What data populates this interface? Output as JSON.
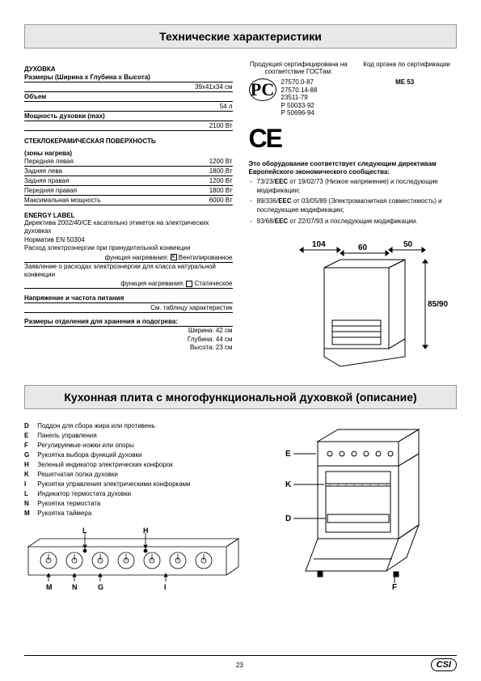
{
  "title1": "Технические характеристики",
  "title2": "Кухонная плита с многофункциональной духовкой (описание)",
  "oven": {
    "heading": "ДУХОВКА",
    "dims_label": "Размеры (Ширина x Глубина x Высота)",
    "dims_value": "39x41x34 см",
    "volume_label": "Объем",
    "volume_value": "54 л",
    "power_label": "Мощность духовки (max)",
    "power_value": "2100 Вт"
  },
  "hob": {
    "heading": "СТЕКЛОКЕРАМИЧЕСКАЯ ПОВЕРХНОСТЬ",
    "subheading": "(зоны нагрева)",
    "rows": [
      {
        "label": "Передняя левая",
        "value": "1200 Вт"
      },
      {
        "label": "Задняя лева",
        "value": "1800 Вт"
      },
      {
        "label": "Задняя правая",
        "value": "1200 Вт"
      },
      {
        "label": "Передняя правая",
        "value": "1800 Вт"
      },
      {
        "label": "Максимальная мощность",
        "value": "6000 Вт"
      }
    ]
  },
  "energy": {
    "heading": "ENERGY LABEL",
    "line1": "Директива 2002/40/CE касательно этикеток на электрических духовках",
    "line2": "Норматив EN 50304",
    "line3": "Расход электроэнергии при принудительной конвекции",
    "func1_label": "функция нагревания:",
    "func1_value": "Вентилированное",
    "line4": "Заявление о расходах электроэнергии для класса натуральной конвекции",
    "func2_label": "функция нагревания:",
    "func2_value": "Статическое"
  },
  "voltage": {
    "heading": "Напряжение и частота питания",
    "value": "См. таблицу характеристик"
  },
  "storage": {
    "heading": "Размеры отделения для хранения и подогрева:",
    "w": "Ширина: 42 см",
    "d": "Глубина: 44 см",
    "h": "Высота: 23 см"
  },
  "cert": {
    "left_text": "Продукция сертифицирована на соответствие ГОСТам:",
    "right_text": "Код органа по сертификации",
    "code": "ME 53",
    "nums": [
      "27570.0-87",
      "27570.14-88",
      "23511-79",
      "Р 50033-92",
      "Р 50696-94"
    ]
  },
  "directives": {
    "intro": "Это оборудование соответствует следующим директивам Европейского экономического сообщества:",
    "items": [
      "73/23/EEC от 19/02/73 (Низкое напряжение) и последующие модификации;",
      "89/336/EEC от 03/05/89 (Электромагнитная совместимость) и последующие модификации;",
      "93/68/EEC от 22/07/93 и последующие модификации."
    ]
  },
  "dimensions": {
    "w1": "104",
    "w2": "60",
    "w3": "50",
    "h": "85/90"
  },
  "legend": [
    {
      "k": "D",
      "t": "Поддон для сбора жира или противень"
    },
    {
      "k": "E",
      "t": "Панель управления"
    },
    {
      "k": "F",
      "t": "Регулируемые ножки или опоры"
    },
    {
      "k": "G",
      "t": "Рукоятка выбора функций духовки"
    },
    {
      "k": "H",
      "t": "Зеленый индикатор электрических конфорок"
    },
    {
      "k": "K",
      "t": "Решетчатая полка духовки"
    },
    {
      "k": "I",
      "t": "Рукоятки управления электрическими конфорками"
    },
    {
      "k": "L",
      "t": "Индикатор термостата духовки"
    },
    {
      "k": "N",
      "t": "Рукоятка термостата"
    },
    {
      "k": "M",
      "t": "Рукоятка таймера"
    }
  ],
  "panel_labels": {
    "L": "L",
    "H": "H",
    "M": "M",
    "N": "N",
    "G": "G",
    "I": "I",
    "E": "E",
    "K": "K",
    "D": "D",
    "F": "F"
  },
  "page_number": "23",
  "csi": "CSI"
}
